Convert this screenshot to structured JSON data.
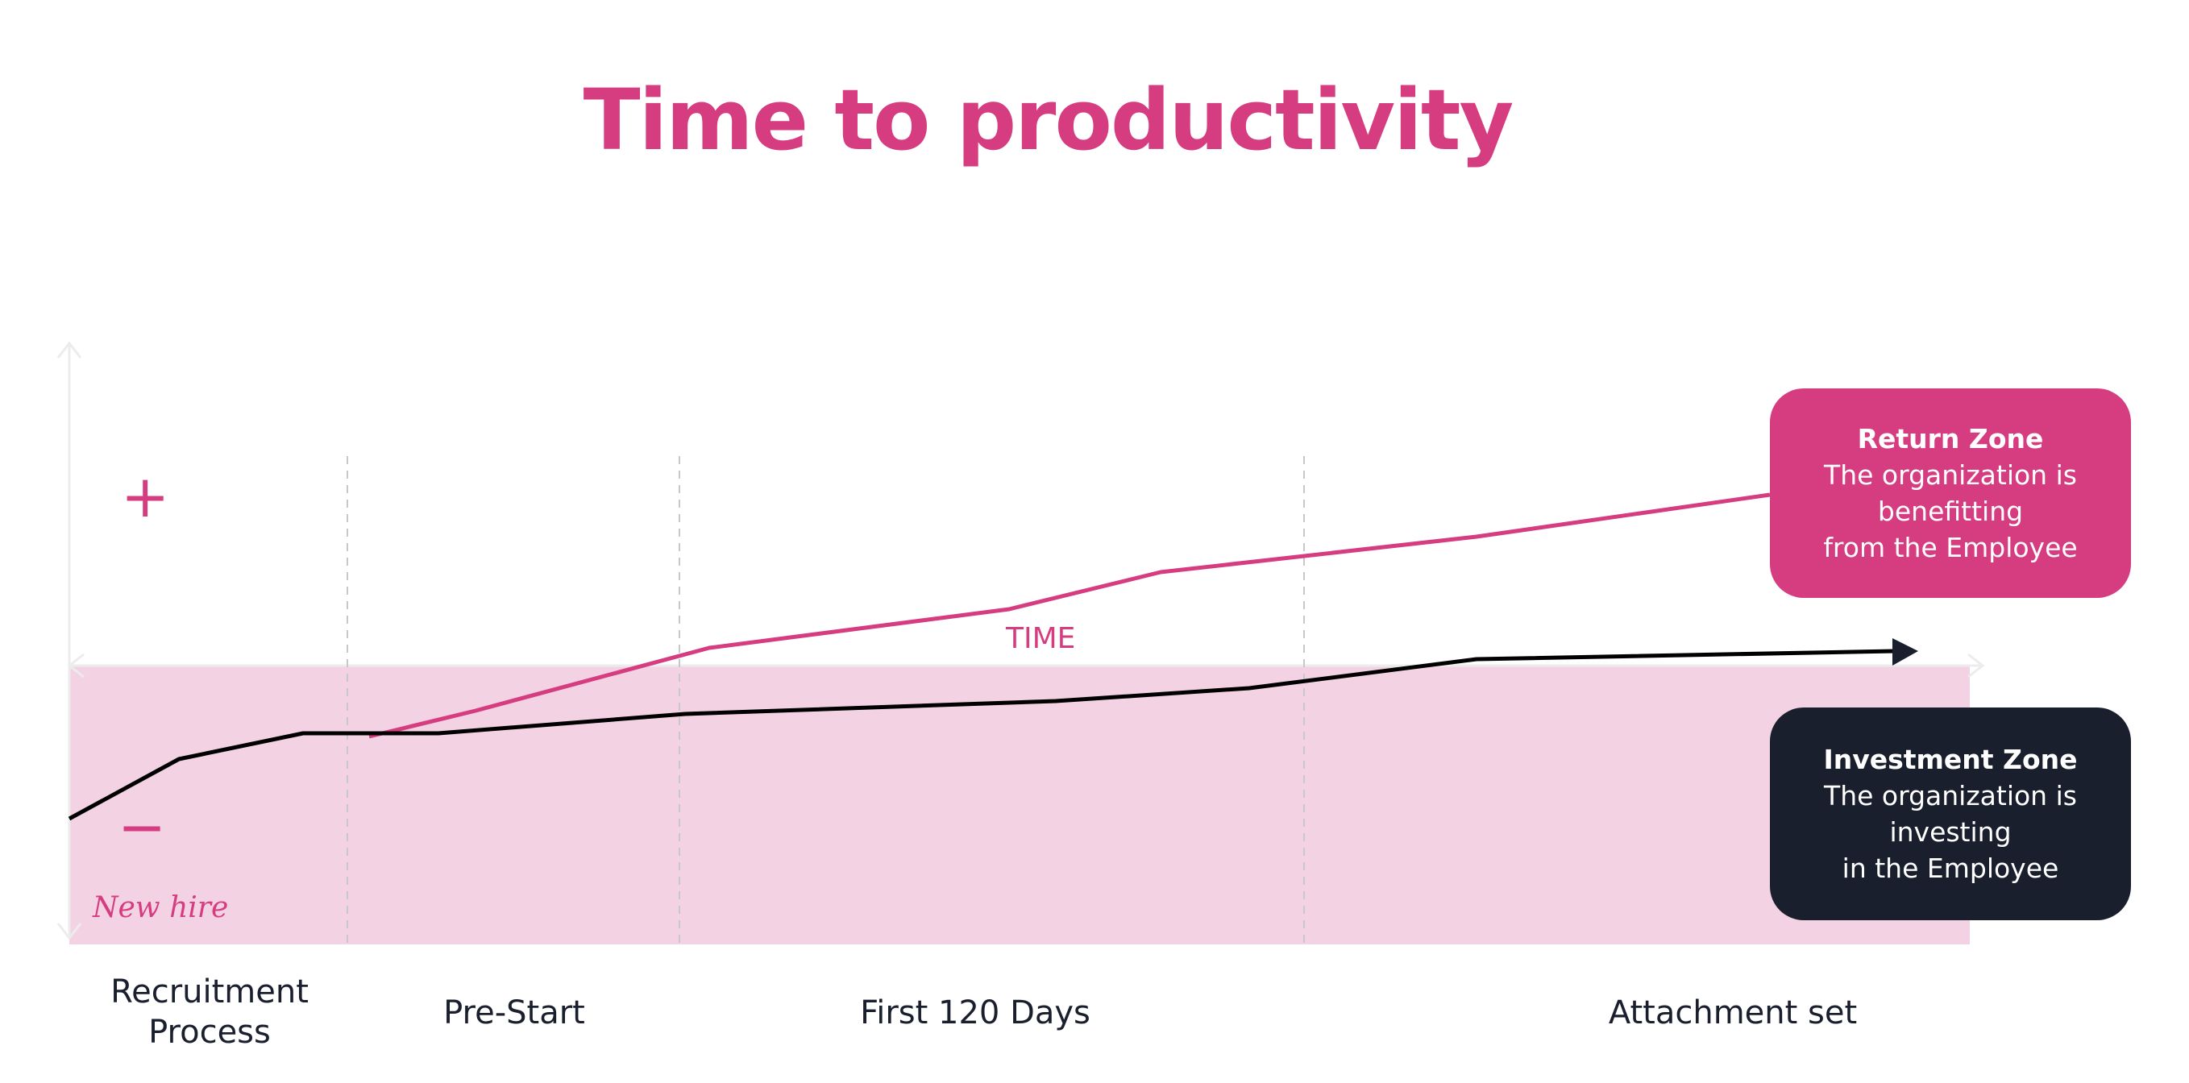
{
  "title": "Time to productivity",
  "axis": {
    "time_label": "TIME",
    "plus_sign": "+",
    "minus_sign": "−",
    "origin_note": "New hire"
  },
  "phases": [
    {
      "label": "Recruitment\nProcess"
    },
    {
      "label": "Pre-Start"
    },
    {
      "label": "First 120 Days"
    },
    {
      "label": "Attachment set"
    }
  ],
  "zones": {
    "return": {
      "title": "Return Zone",
      "description": "The organization is\nbenefitting\nfrom the Employee"
    },
    "investment": {
      "title": "Investment Zone",
      "description": "The organization is\ninvesting\nin the Employee"
    }
  },
  "colors": {
    "accent_pink": "#d63c80",
    "investment_fill": "#f3d3e3",
    "dark_navy": "#1a1f2e",
    "divider_gray": "#c8c8c8"
  }
}
